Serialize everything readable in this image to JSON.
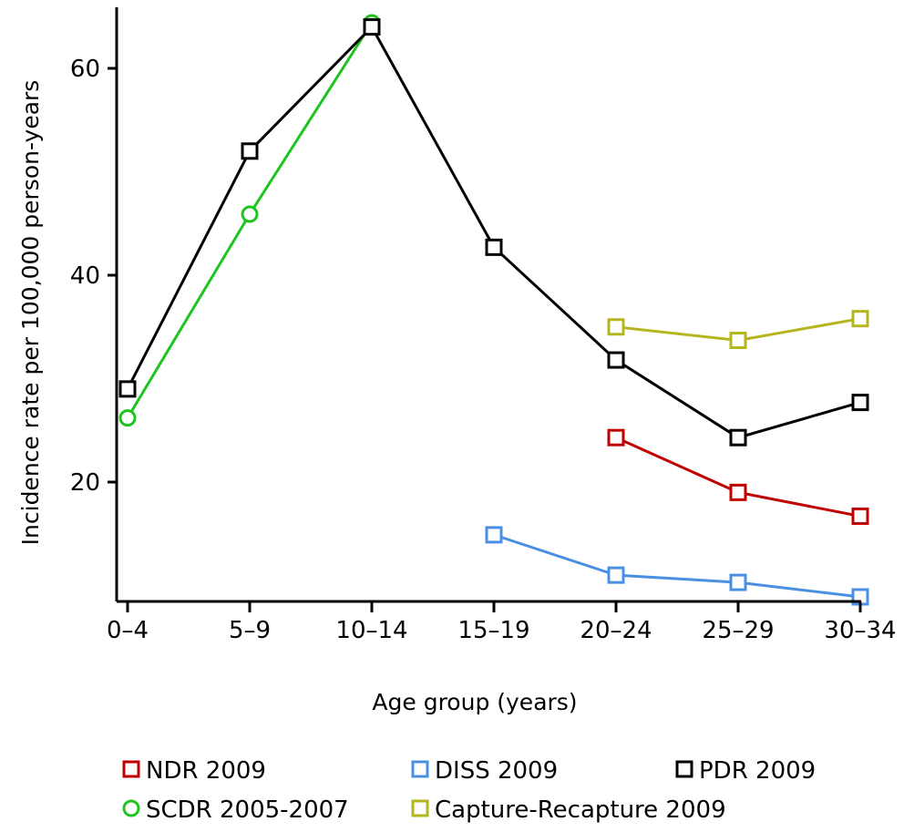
{
  "chart_data": {
    "type": "line",
    "title": "",
    "xlabel": "Age group (years)",
    "ylabel": "Incidence rate per 100,000 person-years",
    "categories": [
      "0–4",
      "5–9",
      "10–14",
      "15–19",
      "20–24",
      "25–29",
      "30–34"
    ],
    "ylim": [
      8,
      66
    ],
    "yticks": [
      20,
      40,
      60
    ],
    "grid": false,
    "legend_position": "bottom",
    "series": [
      {
        "name": "NDR 2009",
        "color": "#c00000",
        "marker": "square",
        "values": [
          null,
          null,
          null,
          null,
          24.3,
          19.0,
          16.7
        ]
      },
      {
        "name": "DISS 2009",
        "color": "#4a90e2",
        "marker": "square",
        "values": [
          null,
          null,
          null,
          14.9,
          11.0,
          10.3,
          8.9
        ]
      },
      {
        "name": "PDR 2009",
        "color": "#000000",
        "marker": "square",
        "values": [
          29.0,
          52.0,
          64.0,
          42.7,
          31.8,
          24.3,
          27.7
        ]
      },
      {
        "name": "SCDR 2005-2007",
        "color": "#1ec51e",
        "marker": "circle",
        "values": [
          26.2,
          45.9,
          64.4,
          null,
          null,
          null,
          null
        ]
      },
      {
        "name": "Capture-Recapture 2009",
        "color": "#b5b51e",
        "marker": "square",
        "values": [
          null,
          null,
          null,
          null,
          35.0,
          33.7,
          35.8
        ]
      }
    ]
  }
}
